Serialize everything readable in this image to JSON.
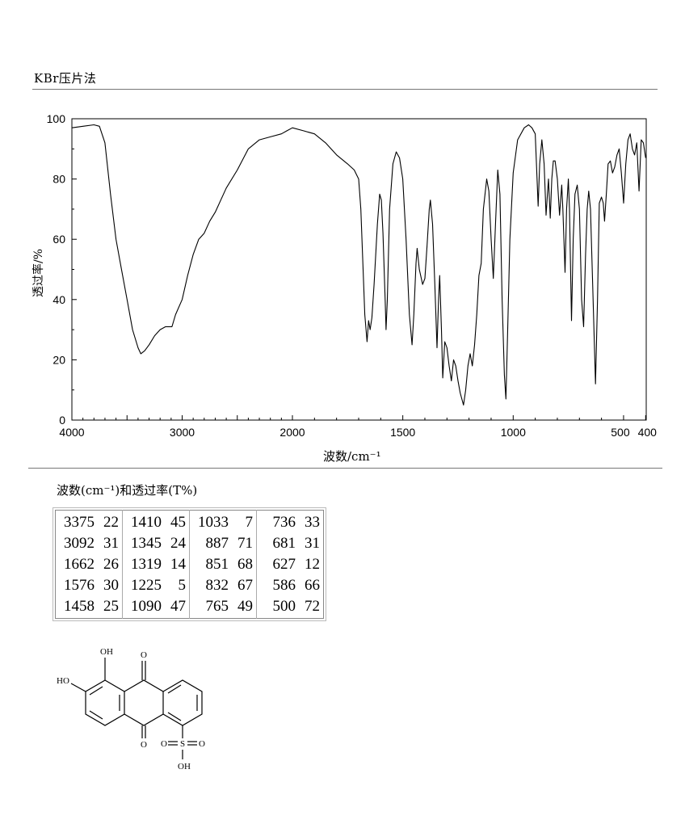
{
  "header": {
    "method": "KBr压片法"
  },
  "chart_data": {
    "type": "line",
    "title": "",
    "xlabel": "波数/cm⁻¹",
    "ylabel": "透过率/%",
    "xlim": [
      4000,
      400
    ],
    "ylim": [
      0,
      100
    ],
    "x_ticks": [
      "4000",
      "3000",
      "2000",
      "1500",
      "1000",
      "500",
      "400"
    ],
    "y_ticks": [
      "0",
      "20",
      "40",
      "60",
      "80",
      "100"
    ],
    "grid": false,
    "series": [
      {
        "points": [
          [
            4000,
            97
          ],
          [
            3900,
            97.5
          ],
          [
            3800,
            98
          ],
          [
            3750,
            97.5
          ],
          [
            3700,
            92
          ],
          [
            3650,
            75
          ],
          [
            3600,
            60
          ],
          [
            3550,
            50
          ],
          [
            3500,
            40
          ],
          [
            3450,
            30
          ],
          [
            3400,
            24
          ],
          [
            3375,
            22
          ],
          [
            3340,
            23
          ],
          [
            3300,
            25
          ],
          [
            3250,
            28
          ],
          [
            3200,
            30
          ],
          [
            3150,
            31
          ],
          [
            3120,
            31
          ],
          [
            3092,
            31
          ],
          [
            3060,
            35
          ],
          [
            3000,
            40
          ],
          [
            2950,
            48
          ],
          [
            2900,
            55
          ],
          [
            2850,
            60
          ],
          [
            2800,
            62
          ],
          [
            2750,
            66
          ],
          [
            2700,
            69
          ],
          [
            2650,
            73
          ],
          [
            2600,
            77
          ],
          [
            2500,
            83
          ],
          [
            2400,
            90
          ],
          [
            2300,
            93
          ],
          [
            2200,
            94
          ],
          [
            2100,
            95
          ],
          [
            2050,
            96
          ],
          [
            2000,
            97
          ],
          [
            1950,
            96
          ],
          [
            1900,
            95
          ],
          [
            1850,
            92
          ],
          [
            1800,
            88
          ],
          [
            1750,
            85
          ],
          [
            1720,
            83
          ],
          [
            1700,
            80
          ],
          [
            1690,
            70
          ],
          [
            1680,
            50
          ],
          [
            1672,
            35
          ],
          [
            1662,
            26
          ],
          [
            1655,
            33
          ],
          [
            1648,
            30
          ],
          [
            1640,
            34
          ],
          [
            1630,
            45
          ],
          [
            1615,
            65
          ],
          [
            1605,
            75
          ],
          [
            1597,
            73
          ],
          [
            1590,
            62
          ],
          [
            1580,
            40
          ],
          [
            1576,
            30
          ],
          [
            1570,
            40
          ],
          [
            1560,
            70
          ],
          [
            1545,
            85
          ],
          [
            1530,
            89
          ],
          [
            1515,
            87
          ],
          [
            1500,
            80
          ],
          [
            1485,
            60
          ],
          [
            1470,
            35
          ],
          [
            1458,
            25
          ],
          [
            1450,
            35
          ],
          [
            1440,
            52
          ],
          [
            1435,
            57
          ],
          [
            1425,
            50
          ],
          [
            1410,
            45
          ],
          [
            1400,
            47
          ],
          [
            1390,
            58
          ],
          [
            1380,
            70
          ],
          [
            1375,
            73
          ],
          [
            1365,
            65
          ],
          [
            1355,
            45
          ],
          [
            1345,
            24
          ],
          [
            1338,
            40
          ],
          [
            1333,
            48
          ],
          [
            1325,
            30
          ],
          [
            1319,
            14
          ],
          [
            1310,
            26
          ],
          [
            1300,
            24
          ],
          [
            1290,
            18
          ],
          [
            1280,
            13
          ],
          [
            1270,
            20
          ],
          [
            1260,
            18
          ],
          [
            1250,
            13
          ],
          [
            1240,
            9
          ],
          [
            1225,
            5
          ],
          [
            1215,
            10
          ],
          [
            1205,
            18
          ],
          [
            1195,
            22
          ],
          [
            1185,
            18
          ],
          [
            1175,
            25
          ],
          [
            1165,
            35
          ],
          [
            1155,
            48
          ],
          [
            1145,
            52
          ],
          [
            1135,
            70
          ],
          [
            1120,
            80
          ],
          [
            1110,
            76
          ],
          [
            1100,
            60
          ],
          [
            1090,
            47
          ],
          [
            1080,
            65
          ],
          [
            1070,
            83
          ],
          [
            1060,
            75
          ],
          [
            1050,
            40
          ],
          [
            1040,
            15
          ],
          [
            1033,
            7
          ],
          [
            1025,
            30
          ],
          [
            1015,
            60
          ],
          [
            1000,
            82
          ],
          [
            980,
            93
          ],
          [
            950,
            97
          ],
          [
            930,
            98
          ],
          [
            915,
            97
          ],
          [
            900,
            95
          ],
          [
            887,
            71
          ],
          [
            880,
            85
          ],
          [
            870,
            93
          ],
          [
            860,
            85
          ],
          [
            851,
            68
          ],
          [
            845,
            75
          ],
          [
            840,
            80
          ],
          [
            832,
            67
          ],
          [
            825,
            80
          ],
          [
            818,
            86
          ],
          [
            810,
            86
          ],
          [
            800,
            80
          ],
          [
            790,
            68
          ],
          [
            780,
            78
          ],
          [
            775,
            70
          ],
          [
            765,
            49
          ],
          [
            758,
            70
          ],
          [
            750,
            80
          ],
          [
            745,
            70
          ],
          [
            736,
            33
          ],
          [
            728,
            60
          ],
          [
            720,
            75
          ],
          [
            710,
            78
          ],
          [
            700,
            70
          ],
          [
            690,
            40
          ],
          [
            681,
            31
          ],
          [
            672,
            55
          ],
          [
            665,
            70
          ],
          [
            658,
            76
          ],
          [
            650,
            70
          ],
          [
            640,
            45
          ],
          [
            627,
            12
          ],
          [
            618,
            40
          ],
          [
            610,
            72
          ],
          [
            600,
            74
          ],
          [
            592,
            72
          ],
          [
            586,
            66
          ],
          [
            578,
            75
          ],
          [
            570,
            85
          ],
          [
            560,
            86
          ],
          [
            550,
            82
          ],
          [
            540,
            84
          ],
          [
            530,
            88
          ],
          [
            520,
            90
          ],
          [
            510,
            82
          ],
          [
            500,
            72
          ],
          [
            490,
            85
          ],
          [
            480,
            93
          ],
          [
            470,
            95
          ],
          [
            460,
            90
          ],
          [
            450,
            88
          ],
          [
            440,
            92
          ],
          [
            430,
            76
          ],
          [
            420,
            93
          ],
          [
            410,
            92
          ],
          [
            400,
            87
          ]
        ]
      }
    ]
  },
  "peak_table": {
    "caption": "波数(cm⁻¹)和透过率(T%)",
    "columns": [
      [
        [
          "3375",
          "22"
        ],
        [
          "3092",
          "31"
        ],
        [
          "1662",
          "26"
        ],
        [
          "1576",
          "30"
        ],
        [
          "1458",
          "25"
        ]
      ],
      [
        [
          "1410",
          "45"
        ],
        [
          "1345",
          "24"
        ],
        [
          "1319",
          "14"
        ],
        [
          "1225",
          "5"
        ],
        [
          "1090",
          "47"
        ]
      ],
      [
        [
          "1033",
          "7"
        ],
        [
          "887",
          "71"
        ],
        [
          "851",
          "68"
        ],
        [
          "832",
          "67"
        ],
        [
          "765",
          "49"
        ]
      ],
      [
        [
          "736",
          "33"
        ],
        [
          "681",
          "31"
        ],
        [
          "627",
          "12"
        ],
        [
          "586",
          "66"
        ],
        [
          "500",
          "72"
        ]
      ]
    ]
  },
  "structure": {
    "labels": {
      "oh_top": "OH",
      "ho_left": "HO",
      "o_top": "O",
      "o_bottom": "O",
      "s": "S",
      "o_left": "O",
      "o_right": "O",
      "oh_bottom": "OH"
    }
  }
}
